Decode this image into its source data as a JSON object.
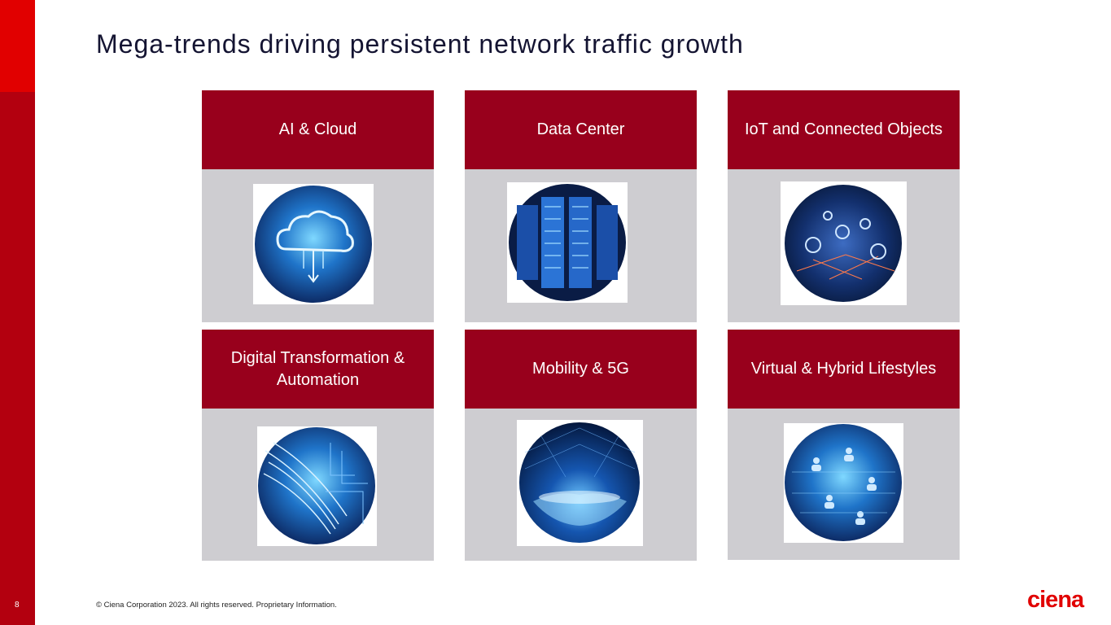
{
  "slide": {
    "title": "Mega-trends driving persistent network traffic growth",
    "page_number": "8",
    "footer": "© Ciena Corporation 2023. All rights reserved. Proprietary Information.",
    "logo_text": "ciena",
    "colors": {
      "accent_red": "#e10000",
      "sidebar_red": "#b3000f",
      "card_header": "#98001c",
      "card_body": "#cecdd1",
      "title_text": "#141432"
    }
  },
  "cards": [
    {
      "label": "AI & Cloud",
      "image": "cloud-computing-image"
    },
    {
      "label": "Data Center",
      "image": "server-racks-image"
    },
    {
      "label": "IoT and Connected Objects",
      "image": "connected-network-image"
    },
    {
      "label": "Digital Transformation & Automation",
      "image": "fiber-optic-circuit-image"
    },
    {
      "label": "Mobility & 5G",
      "image": "globe-network-image"
    },
    {
      "label": "Virtual & Hybrid Lifestyles",
      "image": "connected-people-image"
    }
  ]
}
